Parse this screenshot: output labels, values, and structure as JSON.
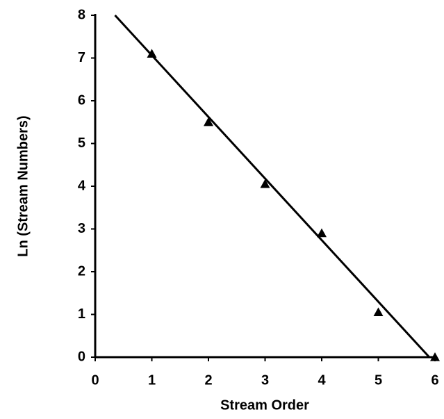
{
  "chart_data": {
    "type": "scatter",
    "xlabel": "Stream Order",
    "ylabel": "Ln (Stream Numbers)",
    "series": [
      {
        "color": "#000000",
        "x": [
          1,
          2,
          3,
          4,
          5,
          6
        ],
        "values": [
          7.1,
          5.5,
          4.05,
          2.9,
          1.05,
          0
        ]
      }
    ],
    "trendline": {
      "color": "#000000",
      "x": [
        0.35,
        5.9
      ],
      "values": [
        8,
        0
      ]
    },
    "xlim": [
      0,
      6
    ],
    "xticks": [
      0,
      1,
      2,
      3,
      4,
      5,
      6
    ],
    "ylim": [
      0,
      8
    ],
    "yticks": [
      0,
      1,
      2,
      3,
      4,
      5,
      6,
      7,
      8
    ]
  }
}
